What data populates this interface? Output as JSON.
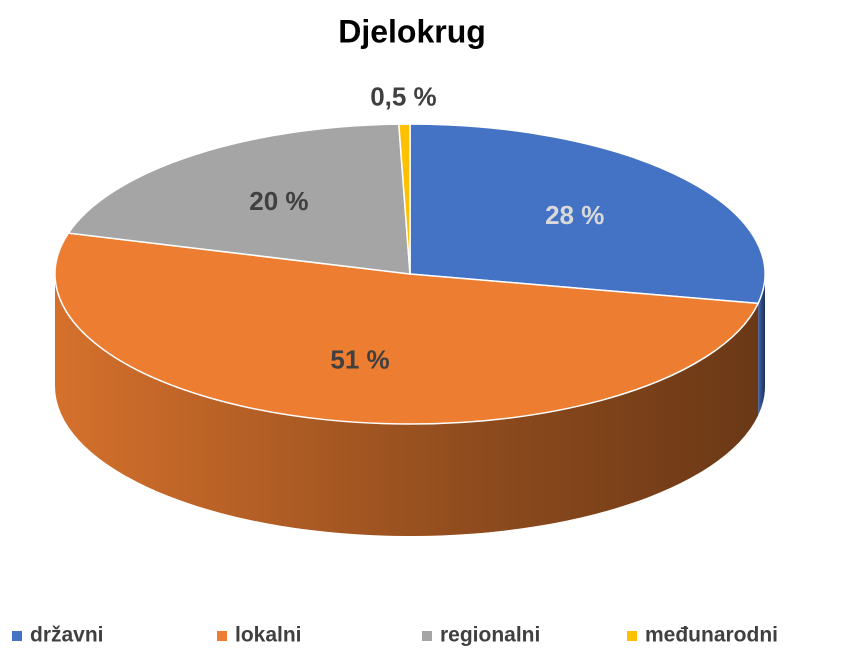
{
  "chart_data": {
    "type": "pie",
    "title": "Djelokrug",
    "categories": [
      "državni",
      "lokalni",
      "regionalni",
      "međunarodni"
    ],
    "values": [
      28,
      51,
      20,
      0.5
    ],
    "value_labels": [
      "28 %",
      "51 %",
      "20 %",
      "0,5 %"
    ],
    "colors": [
      "#4472c4",
      "#ed7d31",
      "#a5a5a5",
      "#ffc000"
    ],
    "label_colors": [
      "#d9d9d9",
      "#404040",
      "#404040",
      "#404040"
    ],
    "legend": "bottom"
  }
}
